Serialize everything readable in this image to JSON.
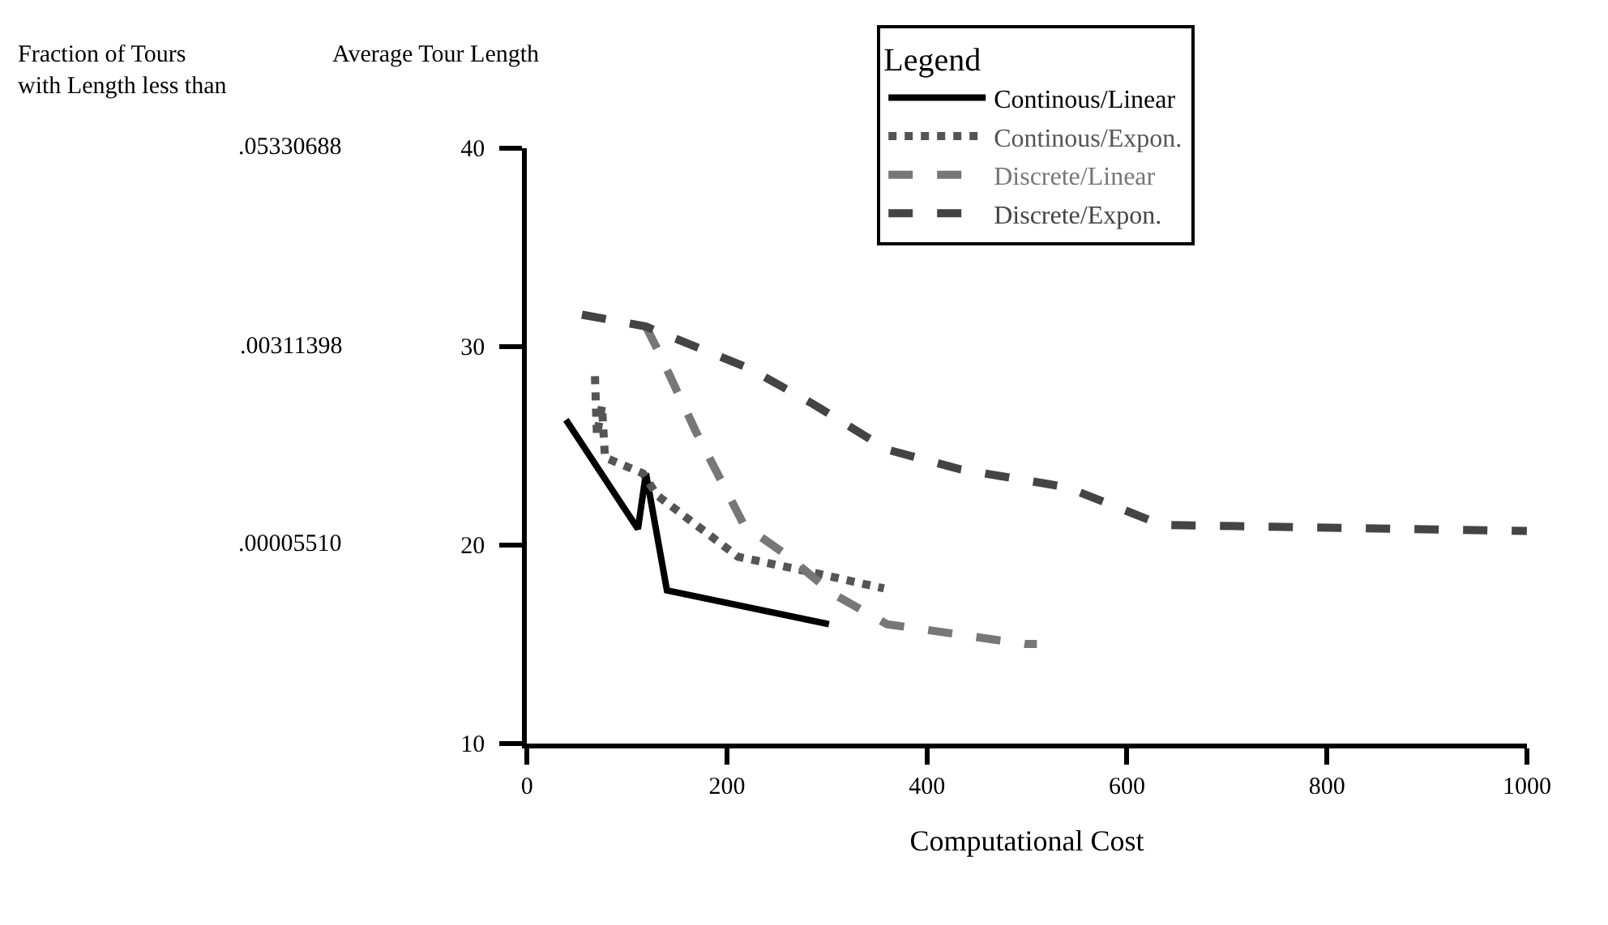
{
  "chart_data": {
    "type": "line",
    "xlabel": "Computational Cost",
    "ylabel": "Average Tour Length",
    "legend_title": "Legend",
    "legend": "top right",
    "marker": "none",
    "annotations": [
      "Fraction of Tours\nwith Length less than",
      ".05330688",
      ".00311398",
      ".00005510"
    ],
    "xlim": [
      0,
      1000
    ],
    "xticks": [
      0,
      200,
      400,
      600,
      800,
      1000
    ],
    "ylim": [
      10,
      40
    ],
    "yticks": [
      10,
      20,
      30,
      40
    ],
    "series": [
      {
        "name": "Continous/Linear",
        "color": "#000000",
        "line_style": "solid",
        "x": [
          39,
          111,
          119,
          140,
          302
        ],
        "values": [
          26.3,
          20.8,
          23.6,
          17.7,
          16.0
        ]
      },
      {
        "name": "Continous/Expon.",
        "color": "#555555",
        "line_style": "dotted",
        "x": [
          68,
          70,
          75,
          78,
          116,
          130,
          211,
          286,
          357
        ],
        "values": [
          28.5,
          25.5,
          27.0,
          24.4,
          23.6,
          22.5,
          19.4,
          18.6,
          17.8
        ]
      },
      {
        "name": "Discrete/Linear",
        "color": "#777777",
        "line_style": "dashed",
        "x": [
          119,
          132,
          169,
          217,
          259,
          307,
          360,
          498,
          510
        ],
        "values": [
          31.0,
          29.7,
          25.7,
          21.0,
          19.5,
          17.5,
          16.0,
          15.0,
          15.0
        ]
      },
      {
        "name": "Discrete/Expon.",
        "color": "#444444",
        "line_style": "dashed",
        "x": [
          55,
          119,
          222,
          286,
          360,
          434,
          540,
          635,
          1000
        ],
        "values": [
          31.6,
          31.0,
          28.9,
          27.1,
          24.8,
          23.8,
          22.9,
          21.0,
          20.7
        ]
      }
    ]
  }
}
